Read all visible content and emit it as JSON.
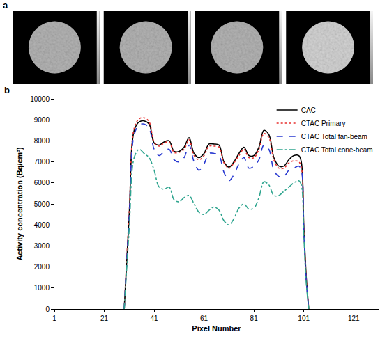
{
  "panel_a": {
    "label": "a",
    "images": 4
  },
  "panel_b": {
    "label": "b"
  },
  "chart_data": {
    "type": "line",
    "x_label": "Pixel Number",
    "y_label": "Activity concentration (Bq/cm³)",
    "x": [
      29,
      31,
      33,
      35,
      37,
      39,
      41,
      43,
      45,
      47,
      49,
      51,
      53,
      55,
      57,
      59,
      61,
      63,
      65,
      67,
      69,
      71,
      73,
      75,
      77,
      79,
      81,
      83,
      85,
      87,
      89,
      91,
      93,
      95,
      97,
      99,
      100,
      101,
      102,
      103
    ],
    "series": [
      {
        "name": "CAC",
        "color": "#000000",
        "line_style": "solid",
        "values": [
          0,
          4500,
          8500,
          8900,
          8950,
          8800,
          7900,
          7800,
          7950,
          8000,
          7500,
          7500,
          7700,
          8150,
          7400,
          7200,
          7400,
          7850,
          7850,
          7800,
          7000,
          6750,
          7000,
          7400,
          7700,
          7300,
          7300,
          7700,
          8500,
          8300,
          7200,
          6800,
          6800,
          7100,
          7300,
          7300,
          7000,
          4000,
          1500,
          0
        ]
      },
      {
        "name": "CTAC Primary",
        "color": "#e8312f",
        "line_style": "dot",
        "values": [
          0,
          4600,
          8600,
          9050,
          9100,
          8900,
          7950,
          7750,
          7900,
          7950,
          7450,
          7450,
          7600,
          8050,
          7300,
          7100,
          7300,
          7750,
          7750,
          7700,
          6950,
          6700,
          6950,
          7300,
          7600,
          7200,
          7200,
          7600,
          8350,
          8150,
          7100,
          6700,
          6700,
          6950,
          7050,
          7000,
          6750,
          3800,
          1400,
          0
        ]
      },
      {
        "name": "CTAC Total fan-beam",
        "color": "#2a3bd1",
        "line_style": "dash",
        "values": [
          0,
          4400,
          8300,
          8750,
          8800,
          8600,
          7600,
          7300,
          7500,
          7600,
          7100,
          7000,
          7200,
          7800,
          7000,
          6600,
          6900,
          7400,
          7400,
          7300,
          6500,
          6100,
          6400,
          6900,
          7200,
          6700,
          6800,
          7100,
          7800,
          7600,
          6600,
          6300,
          6300,
          6600,
          6700,
          6800,
          6600,
          3700,
          1300,
          0
        ]
      },
      {
        "name": "CTAC Total cone-beam",
        "color": "#2fa58f",
        "line_style": "dashdot",
        "values": [
          0,
          3800,
          7200,
          7600,
          7400,
          7200,
          6600,
          5800,
          5700,
          5800,
          5200,
          5100,
          5300,
          5400,
          5000,
          4600,
          4500,
          4700,
          4850,
          4700,
          4200,
          4000,
          4300,
          4800,
          5000,
          4750,
          4800,
          5300,
          6050,
          5900,
          5400,
          5400,
          5600,
          5800,
          6000,
          6100,
          5900,
          3500,
          1200,
          0
        ]
      }
    ],
    "xlim": [
      1,
      131
    ],
    "xticks": [
      1,
      21,
      41,
      61,
      81,
      101,
      121
    ],
    "ylim": [
      0,
      10000
    ],
    "yticks": [
      0,
      1000,
      2000,
      3000,
      4000,
      5000,
      6000,
      7000,
      8000,
      9000,
      10000
    ],
    "grid": false,
    "legend": "upper right"
  }
}
